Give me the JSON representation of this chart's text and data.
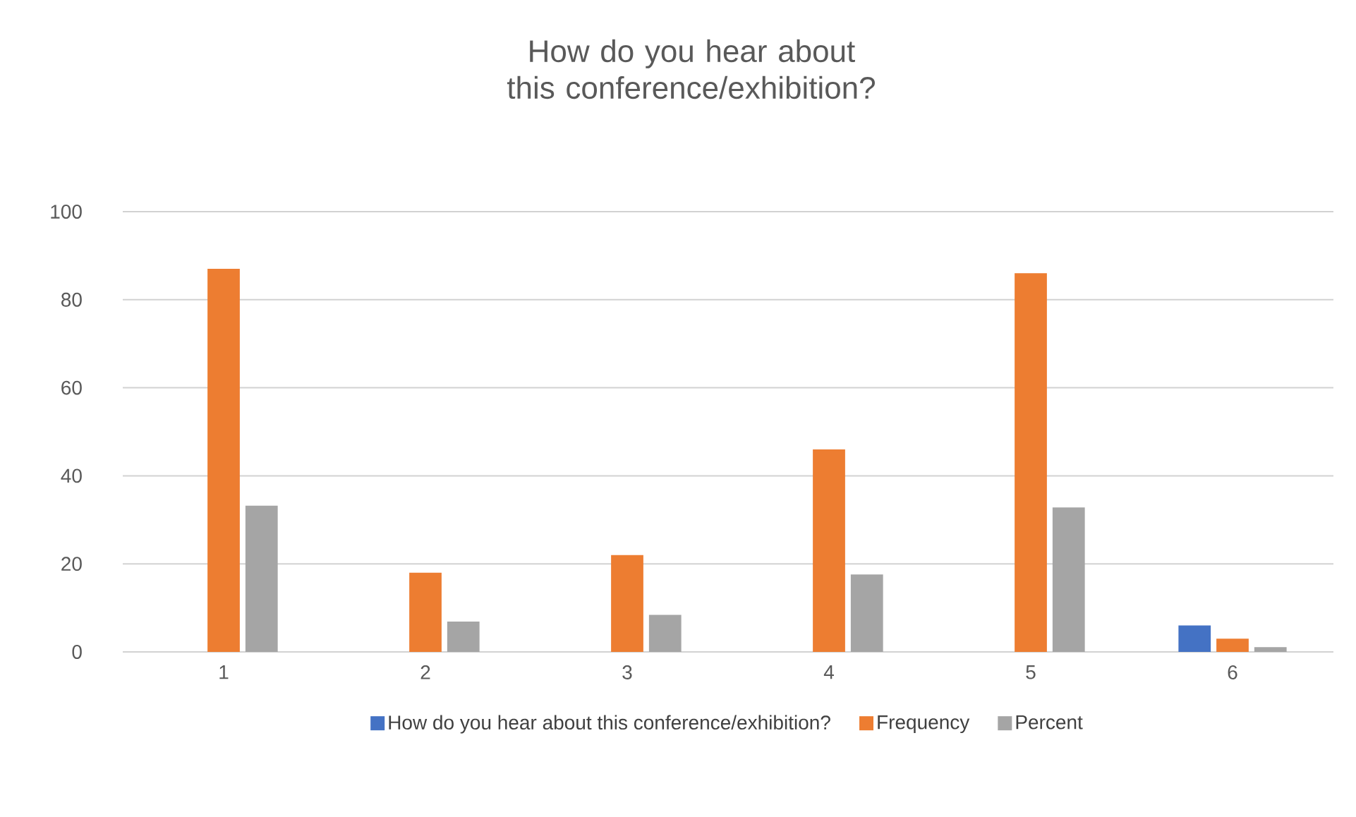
{
  "chart_data": {
    "type": "bar",
    "title": "How do you hear about this conference/exhibition?",
    "categories": [
      "1",
      "2",
      "3",
      "4",
      "5",
      "6"
    ],
    "series": [
      {
        "name": "How do you hear about this conference/exhibition?",
        "color": "#4472c4",
        "values": [
          null,
          null,
          null,
          null,
          null,
          6
        ]
      },
      {
        "name": "Frequency",
        "color": "#ed7d31",
        "values": [
          87,
          18,
          22,
          46,
          86,
          3
        ]
      },
      {
        "name": "Percent",
        "color": "#a5a5a5",
        "values": [
          33.2,
          6.9,
          8.4,
          17.6,
          32.8,
          1.1
        ]
      }
    ],
    "ylim": [
      0,
      100
    ],
    "yticks": [
      0,
      20,
      40,
      60,
      80,
      100
    ],
    "grid": "y",
    "legend": "bottom"
  }
}
